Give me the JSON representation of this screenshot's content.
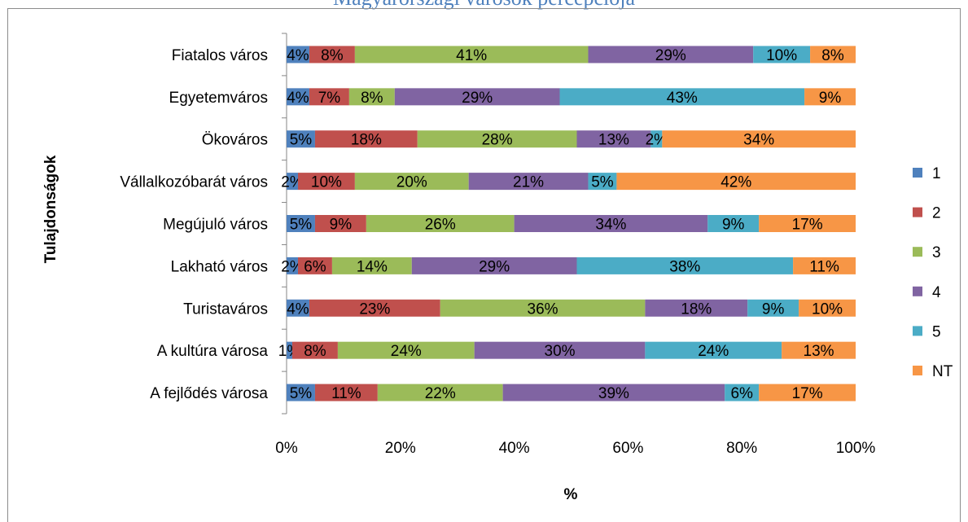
{
  "page": {
    "title": "Magyarországi városok percepciója"
  },
  "chart_data": {
    "type": "bar",
    "orientation": "horizontal",
    "stacked": "percent",
    "title": "",
    "xlabel": "%",
    "ylabel": "Tulajdonságok",
    "xlim": [
      0,
      100
    ],
    "x_ticks": [
      "0%",
      "20%",
      "40%",
      "60%",
      "80%",
      "100%"
    ],
    "legend_position": "right",
    "grid": false,
    "categories": [
      "Fiatalos város",
      "Egyetemváros",
      "Ökováros",
      "Vállalkozóbarát város",
      "Megújuló város",
      "Lakható város",
      "Turistaváros",
      "A kultúra városa",
      "A fejlődés városa"
    ],
    "series": [
      {
        "name": "1",
        "color": "#4f81bd",
        "values": [
          4,
          4,
          5,
          2,
          5,
          2,
          4,
          1,
          5
        ]
      },
      {
        "name": "2",
        "color": "#c0504d",
        "values": [
          8,
          7,
          18,
          10,
          9,
          6,
          23,
          8,
          11
        ]
      },
      {
        "name": "3",
        "color": "#9bbb59",
        "values": [
          41,
          8,
          28,
          20,
          26,
          14,
          36,
          24,
          22
        ]
      },
      {
        "name": "4",
        "color": "#8064a2",
        "values": [
          29,
          29,
          13,
          21,
          34,
          29,
          18,
          30,
          39
        ]
      },
      {
        "name": "5",
        "color": "#4bacc6",
        "values": [
          10,
          43,
          2,
          5,
          9,
          38,
          9,
          24,
          6
        ]
      },
      {
        "name": "NT",
        "color": "#f79646",
        "values": [
          8,
          9,
          34,
          42,
          17,
          11,
          10,
          13,
          17
        ]
      }
    ]
  }
}
